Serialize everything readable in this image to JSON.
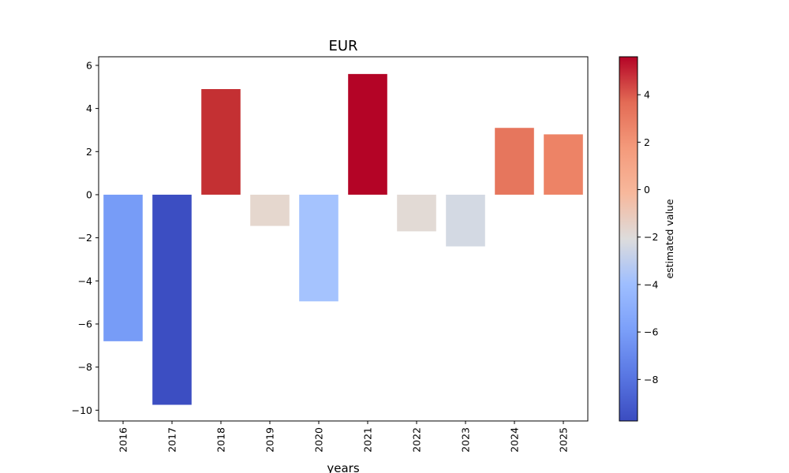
{
  "chart_data": {
    "type": "bar",
    "title": "EUR",
    "xlabel": "years",
    "ylabel": "",
    "categories": [
      "2016",
      "2017",
      "2018",
      "2019",
      "2020",
      "2021",
      "2022",
      "2023",
      "2024",
      "2025"
    ],
    "values": [
      -6.8,
      -9.75,
      4.9,
      -1.45,
      -4.95,
      5.6,
      -1.7,
      -2.4,
      3.1,
      2.8
    ],
    "colors": [
      "#779cf7",
      "#3c4ec2",
      "#c43033",
      "#e5d7ce",
      "#a5c3fe",
      "#b40426",
      "#e2dad5",
      "#d3d9e3",
      "#e6765d",
      "#ed8366"
    ],
    "ylim": [
      -10.5,
      6.4
    ],
    "yticks": [
      6,
      4,
      2,
      0,
      -2,
      -4,
      -6,
      -8,
      -10
    ],
    "ytick_labels": [
      "6",
      "4",
      "2",
      "0",
      "−2",
      "−4",
      "−6",
      "−8",
      "−10"
    ],
    "grid": false,
    "legend": "none",
    "colorbar": {
      "label": "estimated value",
      "cmap": "coolwarm",
      "range": [
        -9.75,
        5.6
      ],
      "ticks": [
        4,
        2,
        0,
        -2,
        -4,
        -6,
        -8
      ],
      "tick_labels": [
        "4",
        "2",
        "0",
        "−2",
        "−4",
        "−6",
        "−8"
      ]
    }
  }
}
